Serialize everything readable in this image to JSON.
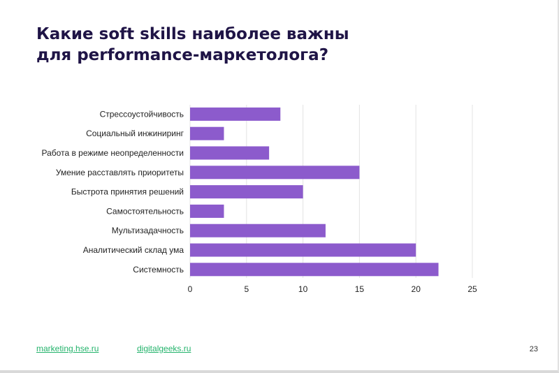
{
  "header": {
    "title_line1": "Какие soft skills наиболее важны",
    "title_line2": "для performance-маркетолога?"
  },
  "chart_data": {
    "type": "bar",
    "orientation": "horizontal",
    "title": "",
    "xlabel": "",
    "ylabel": "",
    "categories": [
      "Стрессоустойчивость",
      "Социальный инжиниринг",
      "Работа в режиме неопределенности",
      "Умение расставлять приоритеты",
      "Быстрота принятия решений",
      "Самостоятельность",
      "Мультизадачность",
      "Аналитический склад ума",
      "Системность"
    ],
    "values": [
      8,
      3,
      7,
      15,
      10,
      3,
      12,
      20,
      22
    ],
    "xlim": [
      0,
      25
    ],
    "xticks": [
      "0",
      "5",
      "10",
      "15",
      "20",
      "25"
    ],
    "grid": true,
    "legend": "none",
    "bar_color": "#8c5bcc",
    "grid_color": "#e3e3e3"
  },
  "footer": {
    "link1": "marketing.hse.ru",
    "link2": "digitalgeeks.ru",
    "page": "23",
    "link_color": "#23b36b"
  }
}
